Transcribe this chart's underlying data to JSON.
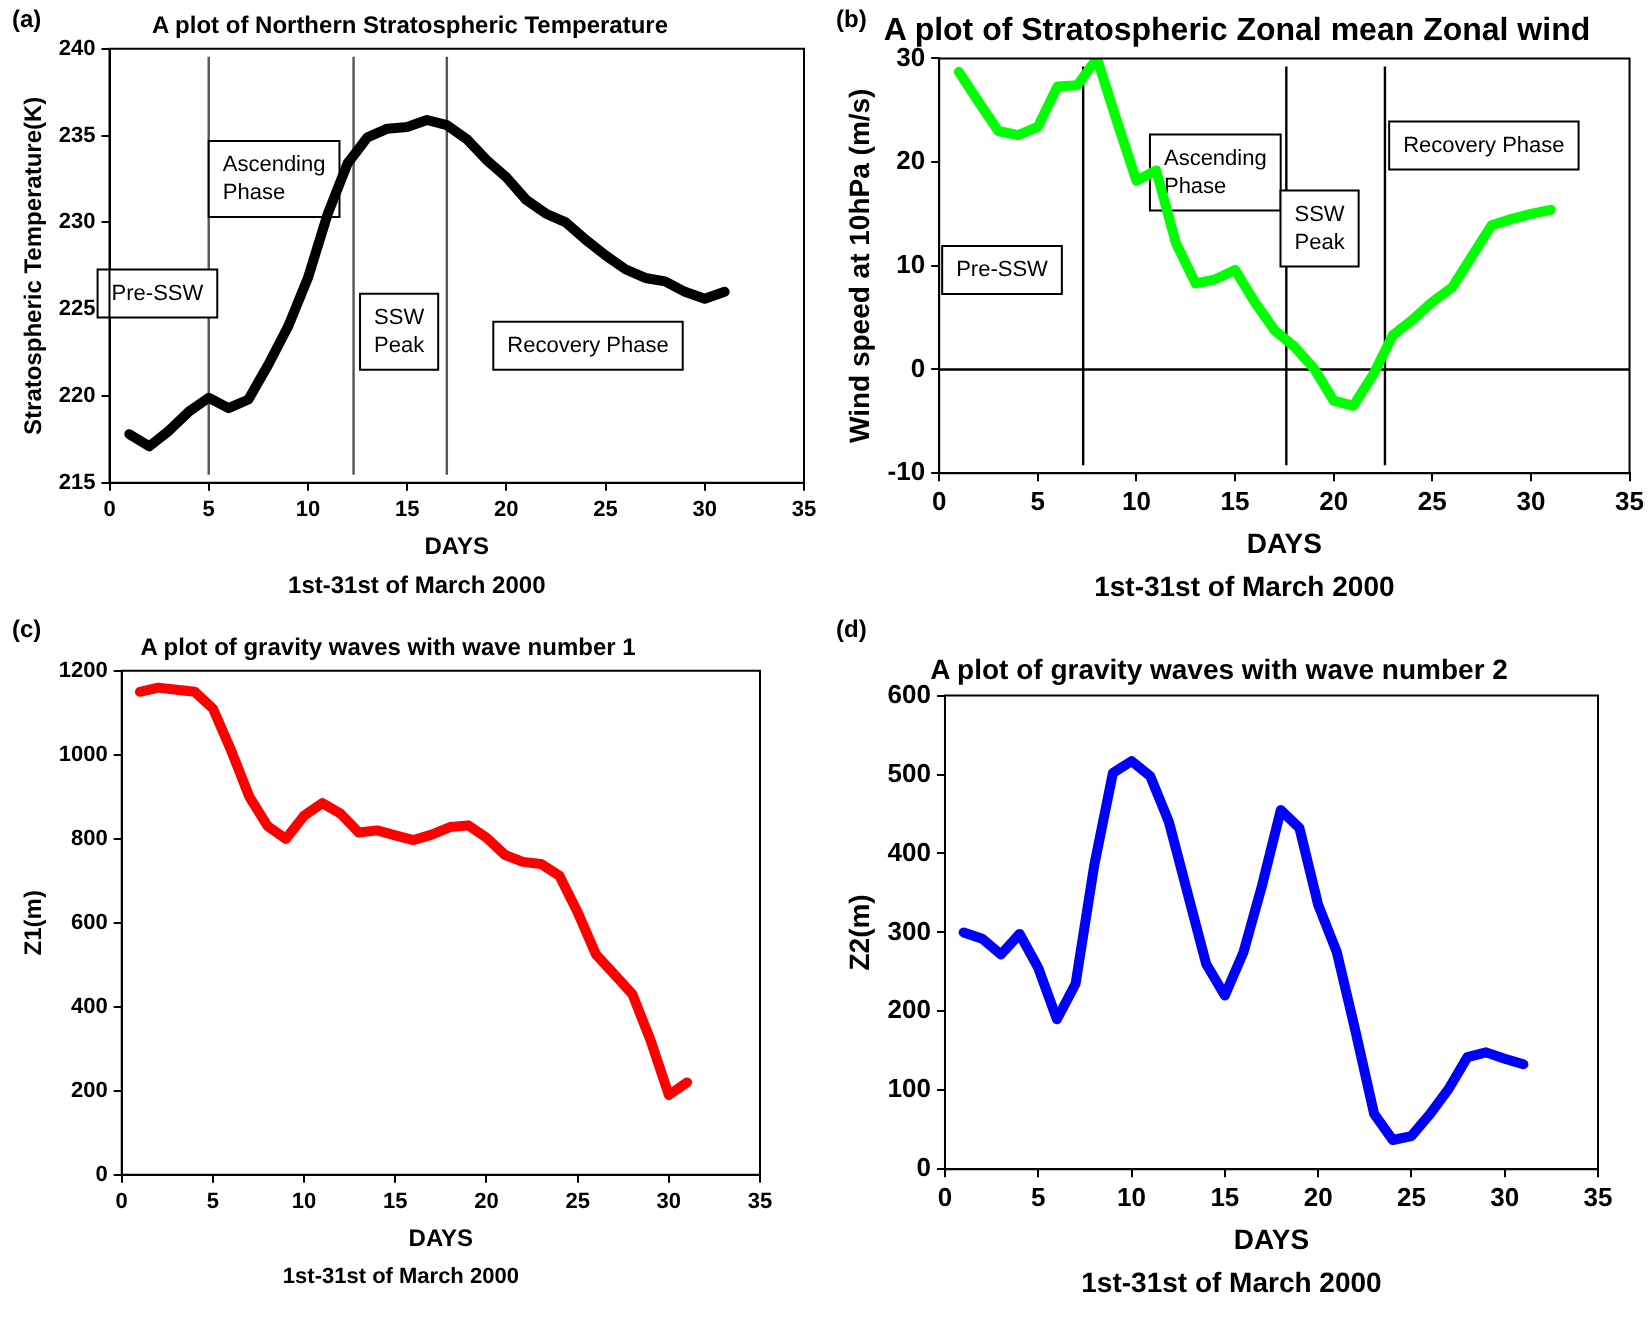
{
  "chart_data": [
    {
      "type": "line",
      "title": "A plot of Northern Stratospheric Temperature",
      "xlabel": "DAYS",
      "ylabel": "Stratospheric Temperature(K)",
      "x": [
        1,
        2,
        3,
        4,
        5,
        6,
        7,
        8,
        9,
        10,
        11,
        12,
        13,
        14,
        15,
        16,
        17,
        18,
        19,
        20,
        21,
        22,
        23,
        24,
        25,
        26,
        27,
        28,
        29,
        30,
        31
      ],
      "series": [
        {
          "color": "#000000",
          "values": [
            217.8,
            217.1,
            218,
            219.1,
            219.9,
            219.3,
            219.8,
            221.8,
            224,
            226.8,
            230.5,
            233.4,
            234.9,
            235.4,
            235.5,
            235.9,
            235.6,
            234.8,
            233.6,
            232.6,
            231.3,
            230.5,
            230,
            229,
            228.1,
            227.3,
            226.8,
            226.6,
            226,
            225.6,
            226
          ]
        }
      ],
      "xlim": [
        0,
        35
      ],
      "xticks": [
        0,
        5,
        10,
        15,
        20,
        25,
        30,
        35
      ],
      "ylim": [
        215,
        240
      ],
      "yticks": [
        215,
        220,
        225,
        230,
        235,
        240
      ],
      "ref_lines": [
        {
          "axis": "x",
          "value": 5,
          "color": "#555555"
        },
        {
          "axis": "x",
          "value": 12.3,
          "color": "#555555"
        },
        {
          "axis": "x",
          "value": 17,
          "color": "#555555"
        }
      ],
      "annotations": [
        "(a)",
        "1st-31st of March 2000",
        "Pre-SSW",
        "Ascending\nPhase",
        "SSW\nPeak",
        "Recovery Phase"
      ],
      "legend": false,
      "marker": "none",
      "line_style": "solid"
    },
    {
      "type": "line",
      "title": "A plot of Stratospheric Zonal mean Zonal wind",
      "xlabel": "DAYS",
      "ylabel": "Wind speed at 10hPa (m/s)",
      "x": [
        1,
        2,
        3,
        4,
        5,
        6,
        7,
        8,
        9,
        10,
        11,
        12,
        13,
        14,
        15,
        16,
        17,
        18,
        19,
        20,
        21,
        22,
        23,
        24,
        25,
        26,
        27,
        28,
        29,
        30,
        31
      ],
      "series": [
        {
          "color": "#00ff00",
          "values": [
            28.7,
            25.8,
            23,
            22.6,
            23.4,
            27.3,
            27.4,
            30,
            24,
            18.2,
            19.2,
            12.2,
            8.3,
            8.7,
            9.6,
            6.5,
            3.8,
            2.2,
            0.1,
            -3,
            -3.5,
            -0.5,
            3.3,
            4.8,
            6.5,
            7.9,
            10.9,
            13.9,
            14.5,
            15,
            15.4
          ]
        }
      ],
      "xlim": [
        0,
        35
      ],
      "xticks": [
        0,
        5,
        10,
        15,
        20,
        25,
        30,
        35
      ],
      "ylim": [
        -10,
        30
      ],
      "yticks": [
        -10,
        0,
        10,
        20,
        30
      ],
      "ref_lines": [
        {
          "axis": "x",
          "value": 7.3,
          "color": "#000000"
        },
        {
          "axis": "x",
          "value": 17.6,
          "color": "#000000"
        },
        {
          "axis": "x",
          "value": 22.6,
          "color": "#000000"
        },
        {
          "axis": "y",
          "value": 0,
          "color": "#000000"
        }
      ],
      "annotations": [
        "(b)",
        "1st-31st of March 2000",
        "Pre-SSW",
        "Ascending\nPhase",
        "SSW\nPeak",
        "Recovery Phase"
      ],
      "legend": false,
      "marker": "none",
      "line_style": "solid"
    },
    {
      "type": "line",
      "title": "A plot of gravity waves with wave number 1",
      "xlabel": "DAYS",
      "ylabel": "Z1(m)",
      "x": [
        1,
        2,
        3,
        4,
        5,
        6,
        7,
        8,
        9,
        10,
        11,
        12,
        13,
        14,
        15,
        16,
        17,
        18,
        19,
        20,
        21,
        22,
        23,
        24,
        25,
        26,
        27,
        28,
        29,
        30,
        31
      ],
      "series": [
        {
          "color": "#ff0000",
          "values": [
            1150,
            1160,
            1155,
            1150,
            1110,
            1010,
            900,
            830,
            800,
            855,
            885,
            860,
            815,
            820,
            808,
            797,
            810,
            828,
            832,
            803,
            762,
            745,
            740,
            712,
            625,
            525,
            478,
            430,
            320,
            190,
            220
          ]
        }
      ],
      "xlim": [
        0,
        35
      ],
      "xticks": [
        0,
        5,
        10,
        15,
        20,
        25,
        30,
        35
      ],
      "ylim": [
        0,
        1200
      ],
      "yticks": [
        0,
        200,
        400,
        600,
        800,
        1000,
        1200
      ],
      "annotations": [
        "(c)",
        "1st-31st of March 2000"
      ],
      "legend": false,
      "marker": "none",
      "line_style": "solid"
    },
    {
      "type": "line",
      "title": "A plot of gravity waves with wave number 2",
      "xlabel": "DAYS",
      "ylabel": "Z2(m)",
      "x": [
        1,
        2,
        3,
        4,
        5,
        6,
        7,
        8,
        9,
        10,
        11,
        12,
        13,
        14,
        15,
        16,
        17,
        18,
        19,
        20,
        21,
        22,
        23,
        24,
        25,
        26,
        27,
        28,
        29,
        30,
        31
      ],
      "series": [
        {
          "color": "#0000ff",
          "values": [
            300,
            292,
            272,
            298,
            255,
            190,
            235,
            385,
            502,
            517,
            498,
            440,
            350,
            260,
            220,
            275,
            360,
            455,
            432,
            335,
            275,
            175,
            70,
            37,
            42,
            70,
            102,
            142,
            148,
            140,
            133
          ]
        }
      ],
      "xlim": [
        0,
        35
      ],
      "xticks": [
        0,
        5,
        10,
        15,
        20,
        25,
        30,
        35
      ],
      "ylim": [
        0,
        600
      ],
      "yticks": [
        0,
        100,
        200,
        300,
        400,
        500,
        600
      ],
      "annotations": [
        "(d)",
        "1st-31st of March 2000"
      ],
      "legend": false,
      "marker": "none",
      "line_style": "solid"
    }
  ]
}
